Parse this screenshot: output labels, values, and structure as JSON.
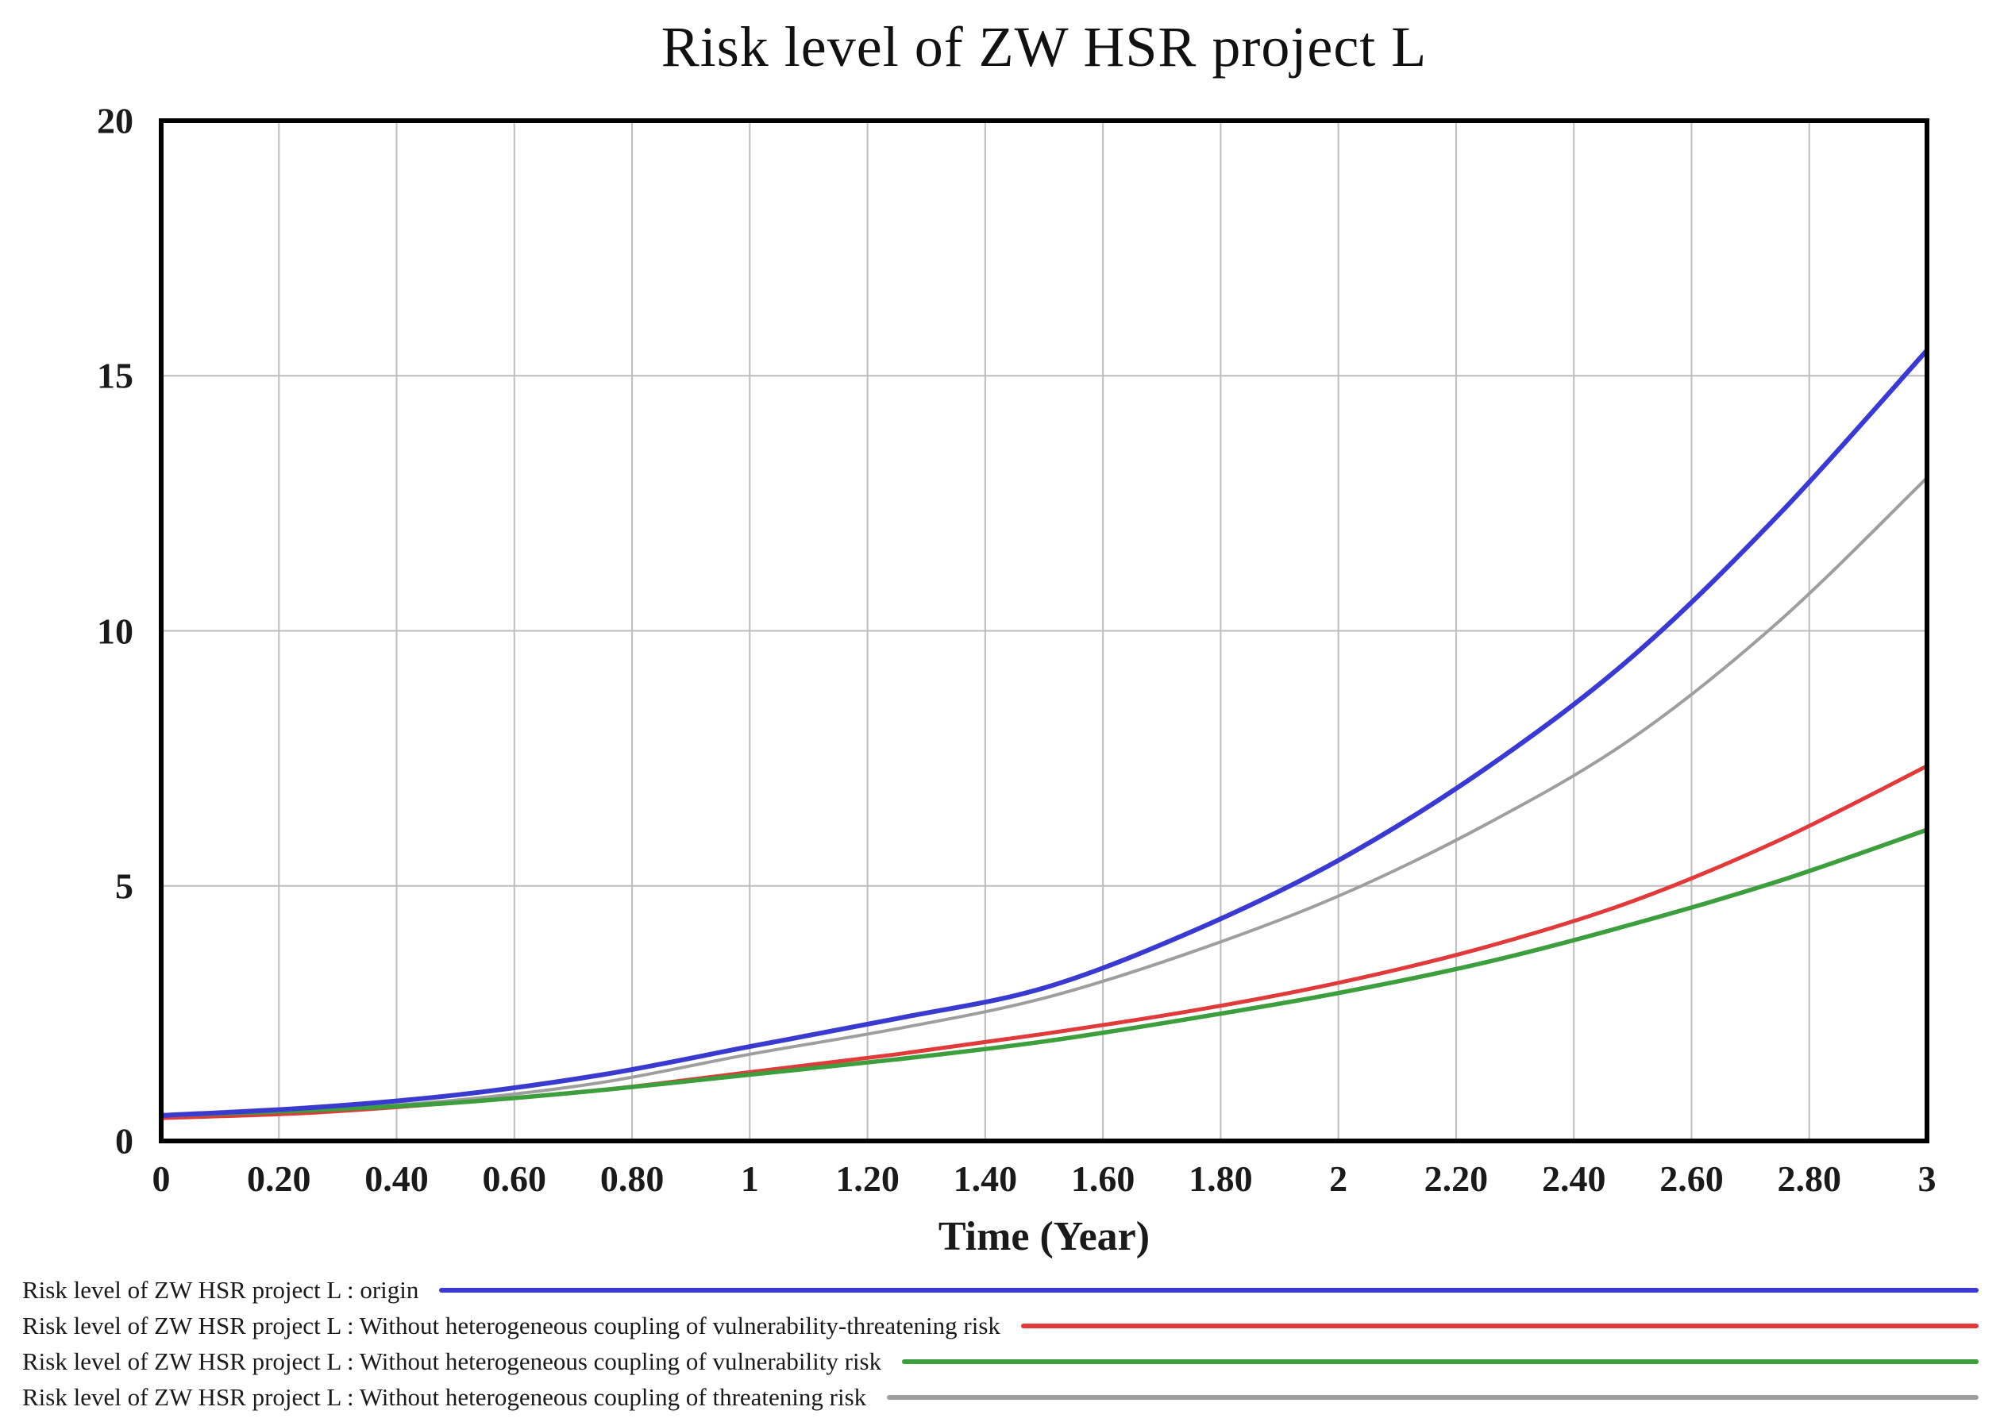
{
  "title": "Risk level of ZW HSR project L",
  "axes": {
    "x_label": "Time (Year)",
    "x_ticks": [
      "0",
      "0.20",
      "0.40",
      "0.60",
      "0.80",
      "1",
      "1.20",
      "1.40",
      "1.60",
      "1.80",
      "2",
      "2.20",
      "2.40",
      "2.60",
      "2.80",
      "3"
    ],
    "y_ticks": [
      "0",
      "5",
      "10",
      "15",
      "20"
    ]
  },
  "chart_data": {
    "type": "line",
    "title": "Risk level of ZW HSR project L",
    "xlabel": "Time (Year)",
    "ylabel": "",
    "xlim": [
      0,
      3
    ],
    "ylim": [
      0,
      20
    ],
    "grid": true,
    "legend_position": "bottom-left",
    "x": [
      0,
      0.25,
      0.5,
      0.75,
      1,
      1.25,
      1.5,
      1.75,
      2,
      2.25,
      2.5,
      2.75,
      3
    ],
    "series": [
      {
        "name": "Risk level of ZW HSR project L : origin",
        "color": "#3a3ad1",
        "stroke_width": 6,
        "values": [
          0.5,
          0.65,
          0.9,
          1.3,
          1.85,
          2.4,
          3.0,
          4.1,
          5.5,
          7.3,
          9.5,
          12.3,
          15.5
        ]
      },
      {
        "name": "Risk level of ZW HSR project L : Without heterogeneous coupling of vulnerability-threatening risk",
        "color": "#e03a3a",
        "stroke_width": 5,
        "values": [
          0.45,
          0.55,
          0.75,
          1.0,
          1.35,
          1.7,
          2.1,
          2.55,
          3.1,
          3.8,
          4.7,
          5.9,
          7.35
        ]
      },
      {
        "name": "Risk level of ZW HSR project L : Without heterogeneous coupling of vulnerability risk",
        "color": "#3c9e3c",
        "stroke_width": 5.5,
        "values": [
          0.5,
          0.6,
          0.75,
          1.0,
          1.3,
          1.6,
          1.95,
          2.4,
          2.9,
          3.5,
          4.25,
          5.1,
          6.1
        ]
      },
      {
        "name": "Risk level of ZW HSR project L : Without heterogeneous coupling of threatening risk",
        "color": "#9e9e9e",
        "stroke_width": 4,
        "values": [
          0.5,
          0.6,
          0.8,
          1.15,
          1.7,
          2.2,
          2.8,
          3.7,
          4.8,
          6.2,
          7.9,
          10.2,
          13.0
        ]
      }
    ]
  },
  "legend": {
    "items": [
      {
        "label": "Risk level of ZW HSR project L : origin",
        "color": "#3a3ad1"
      },
      {
        "label": "Risk level of ZW HSR project L : Without heterogeneous coupling of vulnerability-threatening risk",
        "color": "#e03a3a"
      },
      {
        "label": "Risk level of ZW HSR project L : Without heterogeneous coupling of vulnerability risk",
        "color": "#3c9e3c"
      },
      {
        "label": "Risk level of ZW HSR project L : Without heterogeneous coupling of threatening risk",
        "color": "#9e9e9e"
      }
    ]
  },
  "style": {
    "background": "#ffffff",
    "frame_color": "#000000",
    "grid_color": "#bdbdbd",
    "text_color": "#1a1a1a"
  }
}
